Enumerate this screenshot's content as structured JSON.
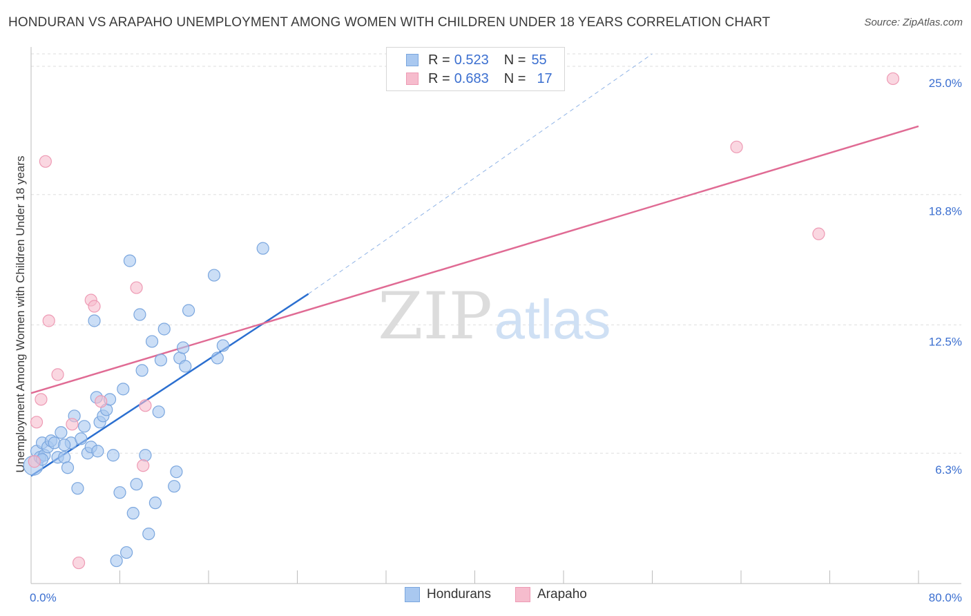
{
  "header": {
    "title": "HONDURAN VS ARAPAHO UNEMPLOYMENT AMONG WOMEN WITH CHILDREN UNDER 18 YEARS CORRELATION CHART",
    "source": "Source: ZipAtlas.com"
  },
  "watermark": {
    "zip": "ZIP",
    "atlas": "atlas"
  },
  "legend": {
    "rows": [
      {
        "r_label": "R =",
        "r_value": "0.523",
        "n_label": "N =",
        "n_value": "55"
      },
      {
        "r_label": "R =",
        "r_value": "0.683",
        "n_label": "N =",
        "n_value": "17"
      }
    ]
  },
  "bottom_legend": {
    "series1": "Hondurans",
    "series2": "Arapaho"
  },
  "colors": {
    "hondurans_fill": "#a9c8f0",
    "hondurans_stroke": "#7aa6de",
    "hondurans_line": "#2b6fd0",
    "arapaho_fill": "#f6bccd",
    "arapaho_stroke": "#ee9ab4",
    "arapaho_line": "#e06b94",
    "tick_label": "#3b6fd0"
  },
  "chart_data": {
    "type": "scatter",
    "title": "HONDURAN VS ARAPAHO UNEMPLOYMENT AMONG WOMEN WITH CHILDREN UNDER 18 YEARS CORRELATION CHART",
    "xlabel": "",
    "ylabel": "Unemployment Among Women with Children Under 18 years",
    "xlim": [
      0,
      80
    ],
    "ylim": [
      0,
      25.6
    ],
    "x_tick_labels": [
      {
        "value": 0,
        "label": "0.0%"
      },
      {
        "value": 80,
        "label": "80.0%"
      }
    ],
    "y_tick_labels": [
      {
        "value": 6.3,
        "label": "6.3%"
      },
      {
        "value": 12.5,
        "label": "12.5%"
      },
      {
        "value": 18.8,
        "label": "18.8%"
      },
      {
        "value": 25.0,
        "label": "25.0%"
      }
    ],
    "grid": true,
    "series": [
      {
        "name": "Hondurans",
        "points": [
          [
            0.2,
            5.7
          ],
          [
            0.5,
            6.4
          ],
          [
            0.8,
            6.1
          ],
          [
            1.0,
            6.8
          ],
          [
            1.2,
            6.2
          ],
          [
            1.5,
            6.6
          ],
          [
            1.8,
            6.9
          ],
          [
            2.1,
            6.8
          ],
          [
            2.4,
            6.1
          ],
          [
            2.7,
            7.3
          ],
          [
            3.0,
            6.1
          ],
          [
            3.3,
            5.6
          ],
          [
            3.6,
            6.8
          ],
          [
            3.9,
            8.1
          ],
          [
            4.2,
            4.6
          ],
          [
            4.5,
            7.0
          ],
          [
            4.8,
            7.6
          ],
          [
            5.1,
            6.3
          ],
          [
            5.4,
            6.6
          ],
          [
            5.7,
            12.7
          ],
          [
            5.9,
            9.0
          ],
          [
            6.2,
            7.8
          ],
          [
            6.5,
            8.1
          ],
          [
            6.8,
            8.4
          ],
          [
            7.1,
            8.9
          ],
          [
            7.4,
            6.2
          ],
          [
            7.7,
            1.1
          ],
          [
            8.0,
            4.4
          ],
          [
            8.3,
            9.4
          ],
          [
            8.6,
            1.5
          ],
          [
            8.9,
            15.6
          ],
          [
            9.2,
            3.4
          ],
          [
            9.5,
            4.8
          ],
          [
            9.8,
            13.0
          ],
          [
            10.0,
            10.3
          ],
          [
            10.3,
            6.2
          ],
          [
            10.6,
            2.4
          ],
          [
            10.9,
            11.7
          ],
          [
            11.2,
            3.9
          ],
          [
            11.5,
            8.3
          ],
          [
            11.7,
            10.8
          ],
          [
            12.0,
            12.3
          ],
          [
            12.9,
            4.7
          ],
          [
            13.1,
            5.4
          ],
          [
            13.4,
            10.9
          ],
          [
            13.7,
            11.4
          ],
          [
            13.9,
            10.5
          ],
          [
            14.2,
            13.2
          ],
          [
            16.5,
            14.9
          ],
          [
            16.8,
            10.9
          ],
          [
            17.3,
            11.5
          ],
          [
            20.9,
            16.2
          ],
          [
            1.0,
            6.0
          ],
          [
            3.0,
            6.7
          ],
          [
            6.0,
            6.4
          ]
        ]
      },
      {
        "name": "Arapaho",
        "points": [
          [
            0.3,
            5.9
          ],
          [
            0.5,
            7.8
          ],
          [
            0.9,
            8.9
          ],
          [
            1.3,
            20.4
          ],
          [
            1.6,
            12.7
          ],
          [
            2.4,
            10.1
          ],
          [
            3.7,
            7.7
          ],
          [
            4.3,
            1.0
          ],
          [
            5.4,
            13.7
          ],
          [
            5.7,
            13.4
          ],
          [
            6.3,
            8.8
          ],
          [
            9.5,
            14.3
          ],
          [
            10.1,
            5.7
          ],
          [
            10.3,
            8.6
          ],
          [
            63.6,
            21.1
          ],
          [
            71.0,
            16.9
          ],
          [
            77.7,
            24.4
          ]
        ]
      }
    ],
    "trendlines": [
      {
        "series": "Hondurans",
        "solid_from": [
          0,
          5.2
        ],
        "solid_to": [
          25,
          14.0
        ],
        "dashed_to": [
          56,
          25.6
        ]
      },
      {
        "series": "Arapaho",
        "from": [
          0,
          9.2
        ],
        "to": [
          80,
          22.1
        ]
      }
    ]
  }
}
